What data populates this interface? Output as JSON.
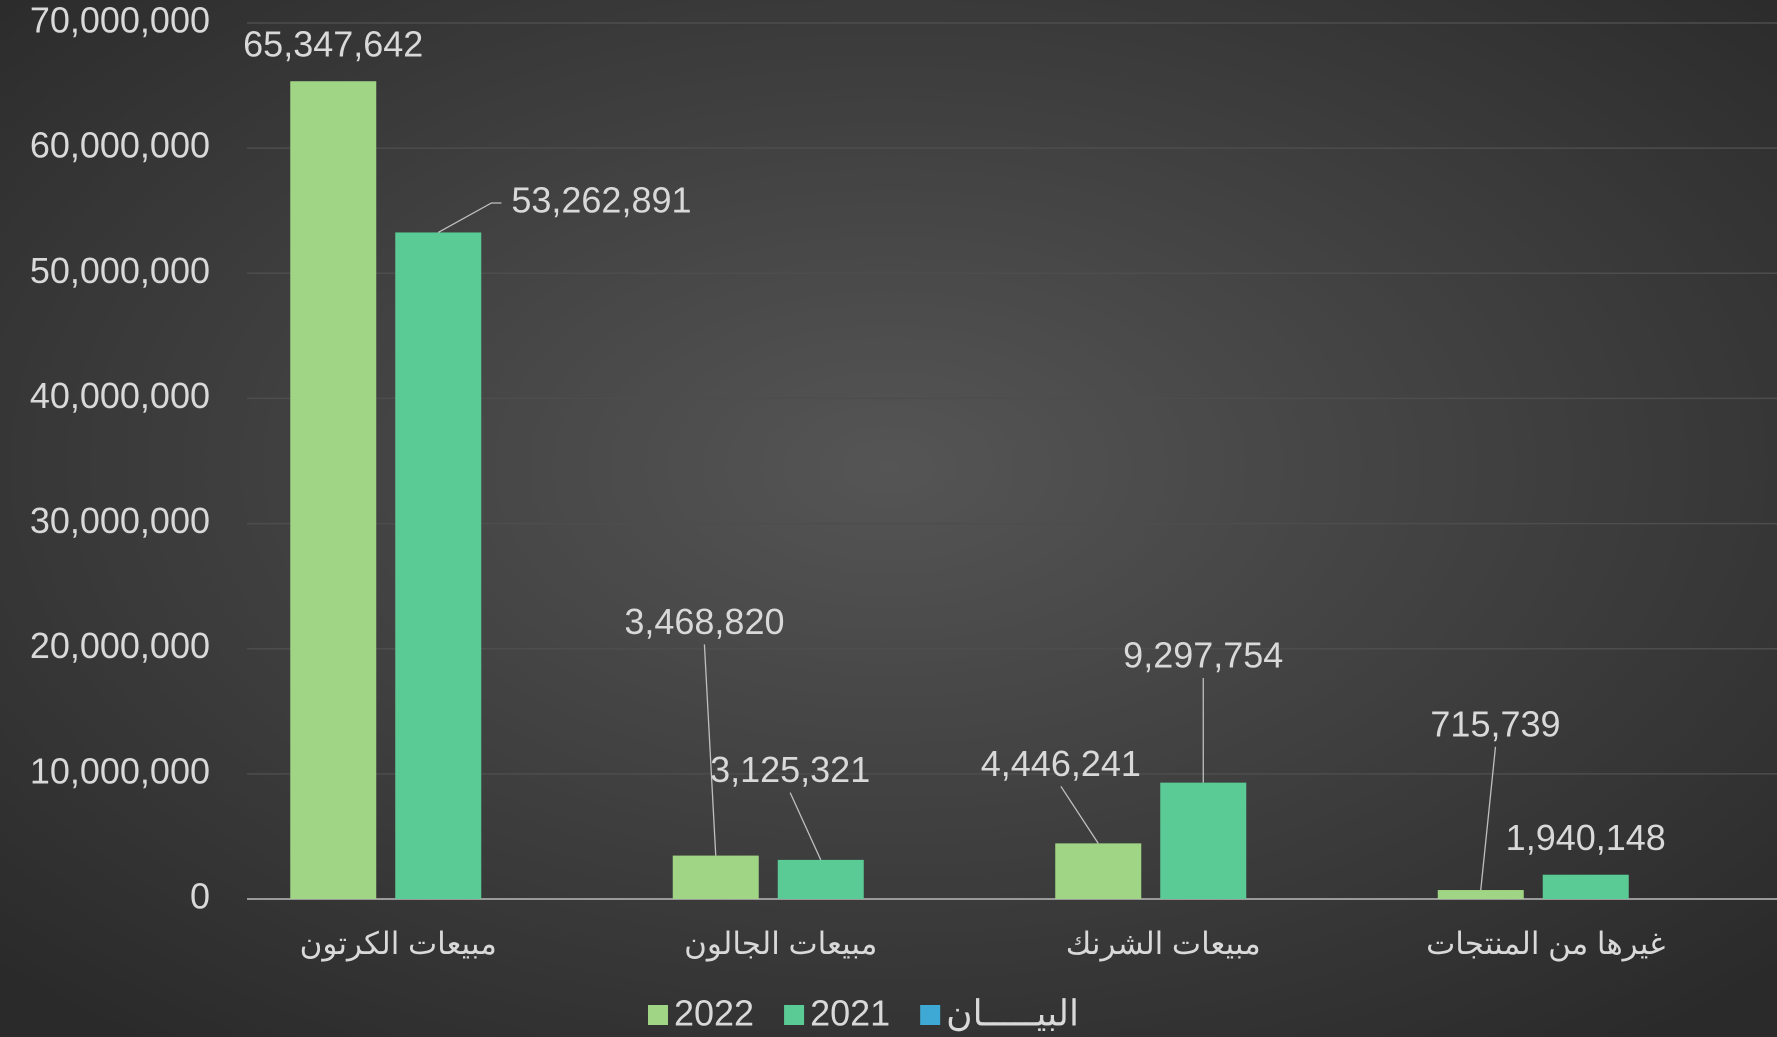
{
  "chart_data": {
    "type": "bar",
    "categories": [
      "مبيعات الكرتون",
      "مبيعات الجالون",
      "مبيعات الشرنك",
      "غيرها من المنتجات"
    ],
    "series": [
      {
        "name": "2022",
        "color": "#9fd584",
        "values": [
          65347642,
          3468820,
          4446241,
          715739
        ],
        "value_labels": [
          "65,347,642",
          "3,468,820",
          "4,446,241",
          "715,739"
        ]
      },
      {
        "name": "2021",
        "color": "#5acb94",
        "values": [
          53262891,
          3125321,
          9297754,
          1940148
        ],
        "value_labels": [
          "53,262,891",
          "3,125,321",
          "9,297,754",
          "1,940,148"
        ]
      },
      {
        "name": "البيـــــان",
        "color": "#3fa9d5",
        "values": [
          null,
          null,
          null,
          null
        ]
      }
    ],
    "ylim": [
      0,
      70000000
    ],
    "yticks": [
      0,
      {
        "value": 10000000,
        "label": "10,000,000"
      },
      {
        "value": 20000000,
        "label": "20,000,000"
      },
      {
        "value": 30000000,
        "label": "30,000,000"
      },
      {
        "value": 40000000,
        "label": "40,000,000"
      },
      {
        "value": 50000000,
        "label": "50,000,000"
      },
      {
        "value": 60000000,
        "label": "60,000,000"
      },
      {
        "value": 70000000,
        "label": "70,000,000"
      }
    ],
    "grid": true,
    "legend": "bottom"
  }
}
